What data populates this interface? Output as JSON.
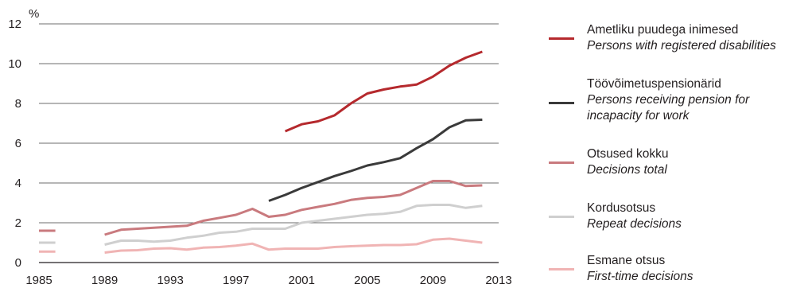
{
  "chart_data": {
    "type": "line",
    "unit_label": "%",
    "x_ticks": [
      1985,
      1989,
      1993,
      1997,
      2001,
      2005,
      2009,
      2013
    ],
    "y_ticks": [
      0,
      2,
      4,
      6,
      8,
      10,
      12
    ],
    "xlim": [
      1985,
      2013
    ],
    "ylim": [
      0,
      12
    ],
    "grid": "horizontal",
    "legend_position": "right",
    "series": [
      {
        "name": "Ametliku puudega inimesed",
        "name_en": "Persons with registered disabilities",
        "color": "#b5292d",
        "points": [
          [
            2000,
            6.6
          ],
          [
            2001,
            6.95
          ],
          [
            2002,
            7.1
          ],
          [
            2003,
            7.4
          ],
          [
            2004,
            8.0
          ],
          [
            2005,
            8.5
          ],
          [
            2006,
            8.7
          ],
          [
            2007,
            8.85
          ],
          [
            2008,
            8.95
          ],
          [
            2009,
            9.35
          ],
          [
            2010,
            9.9
          ],
          [
            2011,
            10.3
          ],
          [
            2012,
            10.6
          ]
        ]
      },
      {
        "name": "Töövõimetuspensionärid",
        "name_en": "Persons receiving pension for incapacity for work",
        "color": "#3a3a3a",
        "points": [
          [
            1999,
            3.1
          ],
          [
            2000,
            3.4
          ],
          [
            2001,
            3.75
          ],
          [
            2002,
            4.05
          ],
          [
            2003,
            4.35
          ],
          [
            2004,
            4.6
          ],
          [
            2005,
            4.88
          ],
          [
            2006,
            5.05
          ],
          [
            2007,
            5.25
          ],
          [
            2008,
            5.75
          ],
          [
            2009,
            6.2
          ],
          [
            2010,
            6.8
          ],
          [
            2011,
            7.15
          ],
          [
            2012,
            7.18
          ]
        ]
      },
      {
        "name": "Otsused kokku",
        "name_en": "Decisions total",
        "color": "#c97a7e",
        "points": [
          [
            1985,
            1.6
          ],
          [
            1986,
            1.6
          ],
          null,
          [
            1989,
            1.4
          ],
          [
            1990,
            1.65
          ],
          [
            1991,
            1.7
          ],
          [
            1992,
            1.75
          ],
          [
            1993,
            1.8
          ],
          [
            1994,
            1.85
          ],
          [
            1995,
            2.1
          ],
          [
            1996,
            2.25
          ],
          [
            1997,
            2.4
          ],
          [
            1998,
            2.7
          ],
          [
            1999,
            2.3
          ],
          [
            2000,
            2.4
          ],
          [
            2001,
            2.65
          ],
          [
            2002,
            2.8
          ],
          [
            2003,
            2.95
          ],
          [
            2004,
            3.15
          ],
          [
            2005,
            3.25
          ],
          [
            2006,
            3.3
          ],
          [
            2007,
            3.4
          ],
          [
            2008,
            3.75
          ],
          [
            2009,
            4.1
          ],
          [
            2010,
            4.1
          ],
          [
            2011,
            3.85
          ],
          [
            2012,
            3.88
          ]
        ]
      },
      {
        "name": "Kordusotsus",
        "name_en": "Repeat decisions",
        "color": "#cfcfcf",
        "points": [
          [
            1985,
            1.0
          ],
          [
            1986,
            1.0
          ],
          null,
          [
            1989,
            0.9
          ],
          [
            1990,
            1.1
          ],
          [
            1991,
            1.1
          ],
          [
            1992,
            1.05
          ],
          [
            1993,
            1.1
          ],
          [
            1994,
            1.25
          ],
          [
            1995,
            1.35
          ],
          [
            1996,
            1.5
          ],
          [
            1997,
            1.55
          ],
          [
            1998,
            1.7
          ],
          [
            1999,
            1.7
          ],
          [
            2000,
            1.7
          ],
          [
            2001,
            2.0
          ],
          [
            2002,
            2.1
          ],
          [
            2003,
            2.2
          ],
          [
            2004,
            2.3
          ],
          [
            2005,
            2.4
          ],
          [
            2006,
            2.45
          ],
          [
            2007,
            2.55
          ],
          [
            2008,
            2.85
          ],
          [
            2009,
            2.9
          ],
          [
            2010,
            2.9
          ],
          [
            2011,
            2.75
          ],
          [
            2012,
            2.85
          ]
        ]
      },
      {
        "name": "Esmane otsus",
        "name_en": "First-time decisions",
        "color": "#f0b4b4",
        "points": [
          [
            1985,
            0.55
          ],
          [
            1986,
            0.55
          ],
          null,
          [
            1989,
            0.5
          ],
          [
            1990,
            0.6
          ],
          [
            1991,
            0.62
          ],
          [
            1992,
            0.7
          ],
          [
            1993,
            0.72
          ],
          [
            1994,
            0.65
          ],
          [
            1995,
            0.75
          ],
          [
            1996,
            0.78
          ],
          [
            1997,
            0.85
          ],
          [
            1998,
            0.95
          ],
          [
            1999,
            0.65
          ],
          [
            2000,
            0.7
          ],
          [
            2001,
            0.7
          ],
          [
            2002,
            0.7
          ],
          [
            2003,
            0.78
          ],
          [
            2004,
            0.82
          ],
          [
            2005,
            0.85
          ],
          [
            2006,
            0.88
          ],
          [
            2007,
            0.88
          ],
          [
            2008,
            0.92
          ],
          [
            2009,
            1.15
          ],
          [
            2010,
            1.2
          ],
          [
            2011,
            1.1
          ],
          [
            2012,
            1.0
          ]
        ]
      }
    ]
  }
}
